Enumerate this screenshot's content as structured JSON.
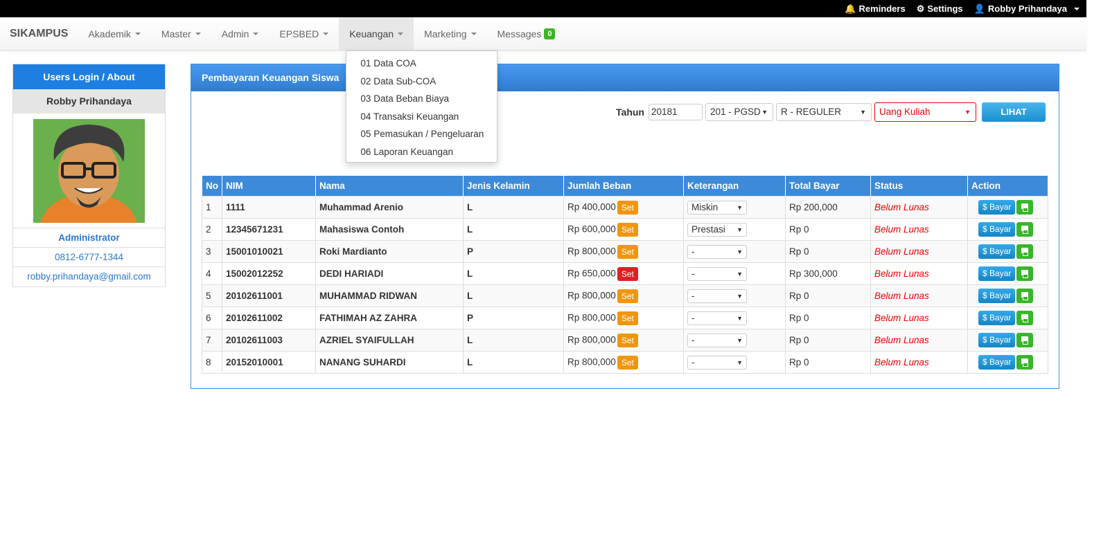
{
  "topbar": {
    "reminders": "Reminders",
    "settings": "Settings",
    "user": "Robby Prihandaya"
  },
  "navbar": {
    "brand": "SIKAMPUS",
    "items": [
      "Akademik",
      "Master",
      "Admin",
      "EPSBED",
      "Keuangan",
      "Marketing"
    ],
    "messages": "Messages",
    "messages_count": "0",
    "active": "Keuangan"
  },
  "dropdown": [
    "01 Data COA",
    "02 Data Sub-COA",
    "03 Data Beban Biaya",
    "04 Transaksi Keuangan",
    "05 Pemasukan / Pengeluaran",
    "06 Laporan Keuangan"
  ],
  "sidebar": {
    "title": "Users Login / About",
    "name": "Robby Prihandaya",
    "role": "Administrator",
    "phone": "0812-6777-1344",
    "email": "robby.prihandaya@gmail.com"
  },
  "panel": {
    "title": "Pembayaran Keuangan Siswa",
    "filters": {
      "tahun_label": "Tahun",
      "tahun": "20181",
      "prodi": "201 - PGSD",
      "kelas": "R - REGULER",
      "jenis": "Uang Kuliah",
      "lihat": "LIHAT"
    },
    "columns": [
      "No",
      "NIM",
      "Nama",
      "Jenis Kelamin",
      "Jumlah Beban",
      "Keterangan",
      "Total Bayar",
      "Status",
      "Action"
    ],
    "set_label": "Set",
    "bayar_label": "Bayar",
    "rows": [
      {
        "no": "1",
        "nim": "1111",
        "nama": "Muhammad Arenio",
        "jk": "L",
        "beban": "Rp 400,000",
        "set_color": "orange",
        "ket": "Miskin",
        "total": "Rp 200,000",
        "status": "Belum Lunas"
      },
      {
        "no": "2",
        "nim": "12345671231",
        "nama": "Mahasiswa Contoh",
        "jk": "L",
        "beban": "Rp 600,000",
        "set_color": "orange",
        "ket": "Prestasi",
        "total": "Rp 0",
        "status": "Belum Lunas"
      },
      {
        "no": "3",
        "nim": "15001010021",
        "nama": "Roki Mardianto",
        "jk": "P",
        "beban": "Rp 800,000",
        "set_color": "orange",
        "ket": "-",
        "total": "Rp 0",
        "status": "Belum Lunas"
      },
      {
        "no": "4",
        "nim": "15002012252",
        "nama": "DEDI HARIADI",
        "jk": "L",
        "beban": "Rp 650,000",
        "set_color": "red",
        "ket": "-",
        "total": "Rp 300,000",
        "status": "Belum Lunas"
      },
      {
        "no": "5",
        "nim": "20102611001",
        "nama": "MUHAMMAD RIDWAN",
        "jk": "L",
        "beban": "Rp 800,000",
        "set_color": "orange",
        "ket": "-",
        "total": "Rp 0",
        "status": "Belum Lunas"
      },
      {
        "no": "6",
        "nim": "20102611002",
        "nama": "FATHIMAH AZ ZAHRA",
        "jk": "P",
        "beban": "Rp 800,000",
        "set_color": "orange",
        "ket": "-",
        "total": "Rp 0",
        "status": "Belum Lunas"
      },
      {
        "no": "7",
        "nim": "20102611003",
        "nama": "AZRIEL SYAIFULLAH",
        "jk": "L",
        "beban": "Rp 800,000",
        "set_color": "orange",
        "ket": "-",
        "total": "Rp 0",
        "status": "Belum Lunas"
      },
      {
        "no": "8",
        "nim": "20152010001",
        "nama": "NANANG SUHARDI",
        "jk": "L",
        "beban": "Rp 800,000",
        "set_color": "orange",
        "ket": "-",
        "total": "Rp 0",
        "status": "Belum Lunas"
      }
    ]
  }
}
